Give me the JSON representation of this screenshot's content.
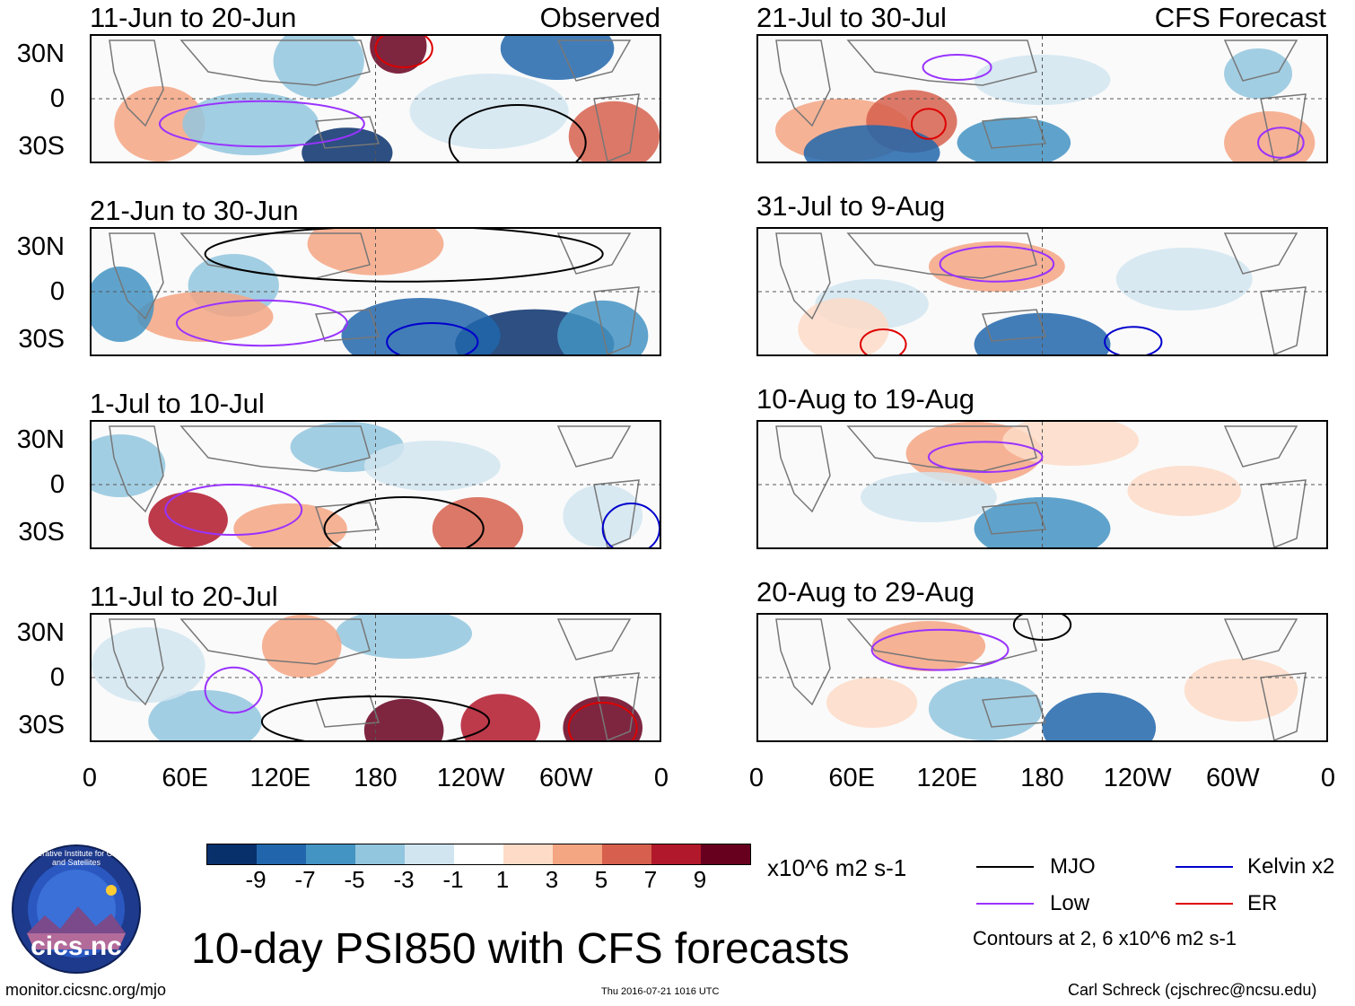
{
  "panels": [
    {
      "id": "p1",
      "title": "11-Jun to 20-Jun",
      "label": "Observed",
      "y_labels": [
        "30N",
        "0",
        "30S"
      ]
    },
    {
      "id": "p2",
      "title": "21-Jun to 30-Jun",
      "label": "",
      "y_labels": [
        "30N",
        "0",
        "30S"
      ]
    },
    {
      "id": "p3",
      "title": "1-Jul to 10-Jul",
      "label": "",
      "y_labels": [
        "30N",
        "0",
        "30S"
      ]
    },
    {
      "id": "p4",
      "title": "11-Jul to 20-Jul",
      "label": "",
      "y_labels": [
        "30N",
        "0",
        "30S"
      ]
    },
    {
      "id": "p5",
      "title": "21-Jul to 30-Jul",
      "label": "CFS Forecast"
    },
    {
      "id": "p6",
      "title": "31-Jul to 9-Aug",
      "label": ""
    },
    {
      "id": "p7",
      "title": "10-Aug to 19-Aug",
      "label": ""
    },
    {
      "id": "p8",
      "title": "20-Aug to 29-Aug",
      "label": ""
    }
  ],
  "x_labels": [
    "0",
    "60E",
    "120E",
    "180",
    "120W",
    "60W",
    "0"
  ],
  "colorbar": {
    "colors": [
      "#08306b",
      "#2166ac",
      "#4393c3",
      "#92c5de",
      "#d1e5f0",
      "#ffffff",
      "#fddbc7",
      "#f4a582",
      "#d6604d",
      "#b2182b",
      "#67001f"
    ],
    "labels": [
      "-9",
      "-7",
      "-5",
      "-3",
      "-1",
      "1",
      "3",
      "5",
      "7",
      "9"
    ],
    "units": "x10^6 m2 s-1"
  },
  "legend": {
    "items": [
      {
        "name": "MJO",
        "color": "#000000"
      },
      {
        "name": "Kelvin x2",
        "color": "#0000cc"
      },
      {
        "name": "Low",
        "color": "#9933ff"
      },
      {
        "name": "ER",
        "color": "#dd0000"
      }
    ],
    "contours_note": "Contours at 2, 6 x10^6 m2 s-1"
  },
  "main_title": "10-day PSI850 with CFS forecasts",
  "logo_text": "cics.nc",
  "logo_ring_text": "Cooperative Institute for Climate and Satellites",
  "footer": {
    "url": "monitor.cicsnc.org/mjo",
    "timestamp": "Thu 2016-07-21 1016 UTC",
    "author": "Carl Schreck (cjschrec@ncsu.edu)"
  }
}
